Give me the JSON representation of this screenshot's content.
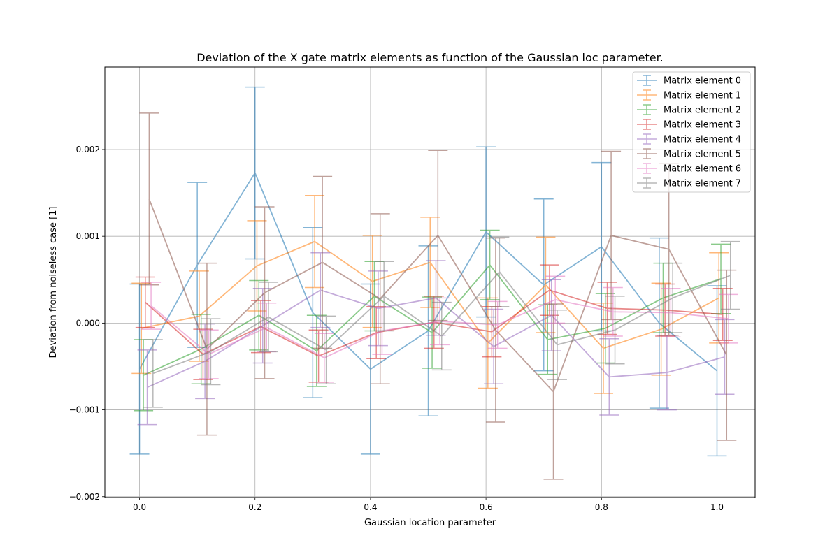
{
  "chart_data": {
    "type": "line",
    "title": "Deviation of the X gate matrix elements as function of the Gaussian loc parameter.",
    "xlabel": "Gaussian location parameter",
    "ylabel": "Deviation from noiseless case [1]",
    "xlim": [
      -0.06,
      1.066
    ],
    "ylim": [
      -0.00201,
      0.00295
    ],
    "xticks": [
      0.0,
      0.2,
      0.4,
      0.6,
      0.8,
      1.0
    ],
    "xtick_labels": [
      "0.0",
      "0.2",
      "0.4",
      "0.6",
      "0.8",
      "1.0"
    ],
    "yticks": [
      -0.002,
      -0.001,
      0.0,
      0.001,
      0.002
    ],
    "ytick_labels": [
      "−0.002",
      "−0.001",
      "0.000",
      "0.001",
      "0.002"
    ],
    "grid": true,
    "legend_position": "top-right",
    "x": [
      0.0,
      0.1,
      0.2,
      0.3,
      0.4,
      0.5,
      0.6,
      0.7,
      0.8,
      0.9,
      1.0
    ],
    "x_offsets": [
      0.0,
      0.0033,
      0.0067,
      0.01,
      0.0133,
      0.0167,
      0.02,
      0.0233
    ],
    "series": [
      {
        "name": "Matrix element 0",
        "color": "#1f77b4",
        "values": [
          -0.00053,
          0.00067,
          0.00173,
          0.00012,
          -0.00053,
          -9e-05,
          0.00105,
          0.00044,
          0.00088,
          0.0,
          -0.00055
        ],
        "errors": [
          0.00098,
          0.00095,
          0.00099,
          0.00098,
          0.00098,
          0.00098,
          0.00098,
          0.00099,
          0.00097,
          0.00098,
          0.00098
        ]
      },
      {
        "name": "Matrix element 1",
        "color": "#ff7f0e",
        "values": [
          -6e-05,
          8e-05,
          0.00066,
          0.00094,
          0.00048,
          0.0007,
          -0.00023,
          0.00044,
          -0.00029,
          -7e-05,
          0.00029
        ],
        "errors": [
          0.00052,
          0.00052,
          0.00052,
          0.00053,
          0.00053,
          0.00052,
          0.00052,
          0.00055,
          0.00052,
          0.00053,
          0.00052
        ]
      },
      {
        "name": "Matrix element 2",
        "color": "#2ca02c",
        "values": [
          -0.0006,
          -0.0003,
          9e-05,
          -0.00032,
          0.00031,
          -0.00011,
          0.00067,
          -0.00019,
          -6e-05,
          0.00029,
          0.00051
        ],
        "errors": [
          0.00041,
          0.0004,
          0.0004,
          0.00041,
          0.0004,
          0.00041,
          0.0004,
          0.0004,
          0.0004,
          0.0004,
          0.0004
        ]
      },
      {
        "name": "Matrix element 3",
        "color": "#d62728",
        "values": [
          0.00024,
          -0.00036,
          -4e-05,
          -0.00038,
          -0.00011,
          1e-05,
          -0.0001,
          0.00038,
          0.00017,
          0.00015,
          0.0001
        ],
        "errors": [
          0.00029,
          0.00029,
          0.0003,
          0.0003,
          0.0003,
          0.0003,
          0.00029,
          0.00029,
          0.0003,
          0.0003,
          0.0003
        ]
      },
      {
        "name": "Matrix element 4",
        "color": "#9467bd",
        "values": [
          -0.00074,
          -0.00044,
          -3e-05,
          0.00038,
          0.00017,
          0.00029,
          -0.00027,
          9e-05,
          -0.00062,
          -0.00057,
          -0.00039
        ],
        "errors": [
          0.00043,
          0.00043,
          0.00043,
          0.00043,
          0.00043,
          0.00043,
          0.00043,
          0.00041,
          0.00044,
          0.00043,
          0.00043
        ]
      },
      {
        "name": "Matrix element 5",
        "color": "#8c564b",
        "values": [
          0.00143,
          -0.0003,
          0.00035,
          0.0007,
          0.00028,
          0.00101,
          -8e-05,
          -0.00079,
          0.00101,
          0.00085,
          -0.00037
        ],
        "errors": [
          0.00099,
          0.00099,
          0.00099,
          0.00099,
          0.00098,
          0.00098,
          0.00106,
          0.00101,
          0.00097,
          0.00099,
          0.00098
        ]
      },
      {
        "name": "Matrix element 6",
        "color": "#e377c2",
        "values": [
          0.0002,
          -0.00036,
          -5e-05,
          -0.0004,
          -9e-05,
          2e-05,
          -2e-05,
          0.00027,
          0.00013,
          0.00012,
          5e-05
        ],
        "errors": [
          0.00027,
          0.00028,
          0.00028,
          0.00028,
          0.00027,
          0.00027,
          0.00027,
          0.00027,
          0.00028,
          0.00028,
          0.00028
        ]
      },
      {
        "name": "Matrix element 7",
        "color": "#7f7f7f",
        "values": [
          -0.00058,
          -0.00033,
          7e-05,
          -0.00031,
          0.00031,
          -0.00015,
          0.00059,
          -0.00025,
          -8e-05,
          0.00029,
          0.00055
        ],
        "errors": [
          0.00039,
          0.00038,
          0.0004,
          0.00039,
          0.0004,
          0.00039,
          0.0004,
          0.0004,
          0.00039,
          0.0004,
          0.00039
        ]
      }
    ]
  }
}
